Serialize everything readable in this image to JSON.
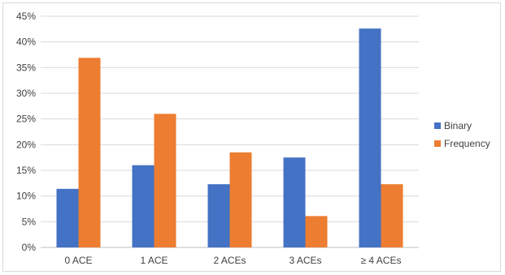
{
  "chart_data": {
    "type": "bar",
    "categories": [
      "0 ACE",
      "1 ACE",
      "2 ACEs",
      "3 ACEs",
      "≥ 4 ACEs"
    ],
    "series": [
      {
        "name": "Binary",
        "color": "#4472C4",
        "values": [
          11.4,
          16.0,
          12.3,
          17.5,
          42.6
        ]
      },
      {
        "name": "Frequency",
        "color": "#ED7D31",
        "values": [
          36.9,
          26.0,
          18.5,
          6.1,
          12.3
        ]
      }
    ],
    "y_ticks": [
      "0%",
      "5%",
      "10%",
      "15%",
      "20%",
      "25%",
      "30%",
      "35%",
      "40%",
      "45%"
    ],
    "ylim": [
      0,
      45
    ],
    "y_unit": "%",
    "grid": true,
    "legend_position": "right",
    "title": "",
    "xlabel": "",
    "ylabel": ""
  }
}
